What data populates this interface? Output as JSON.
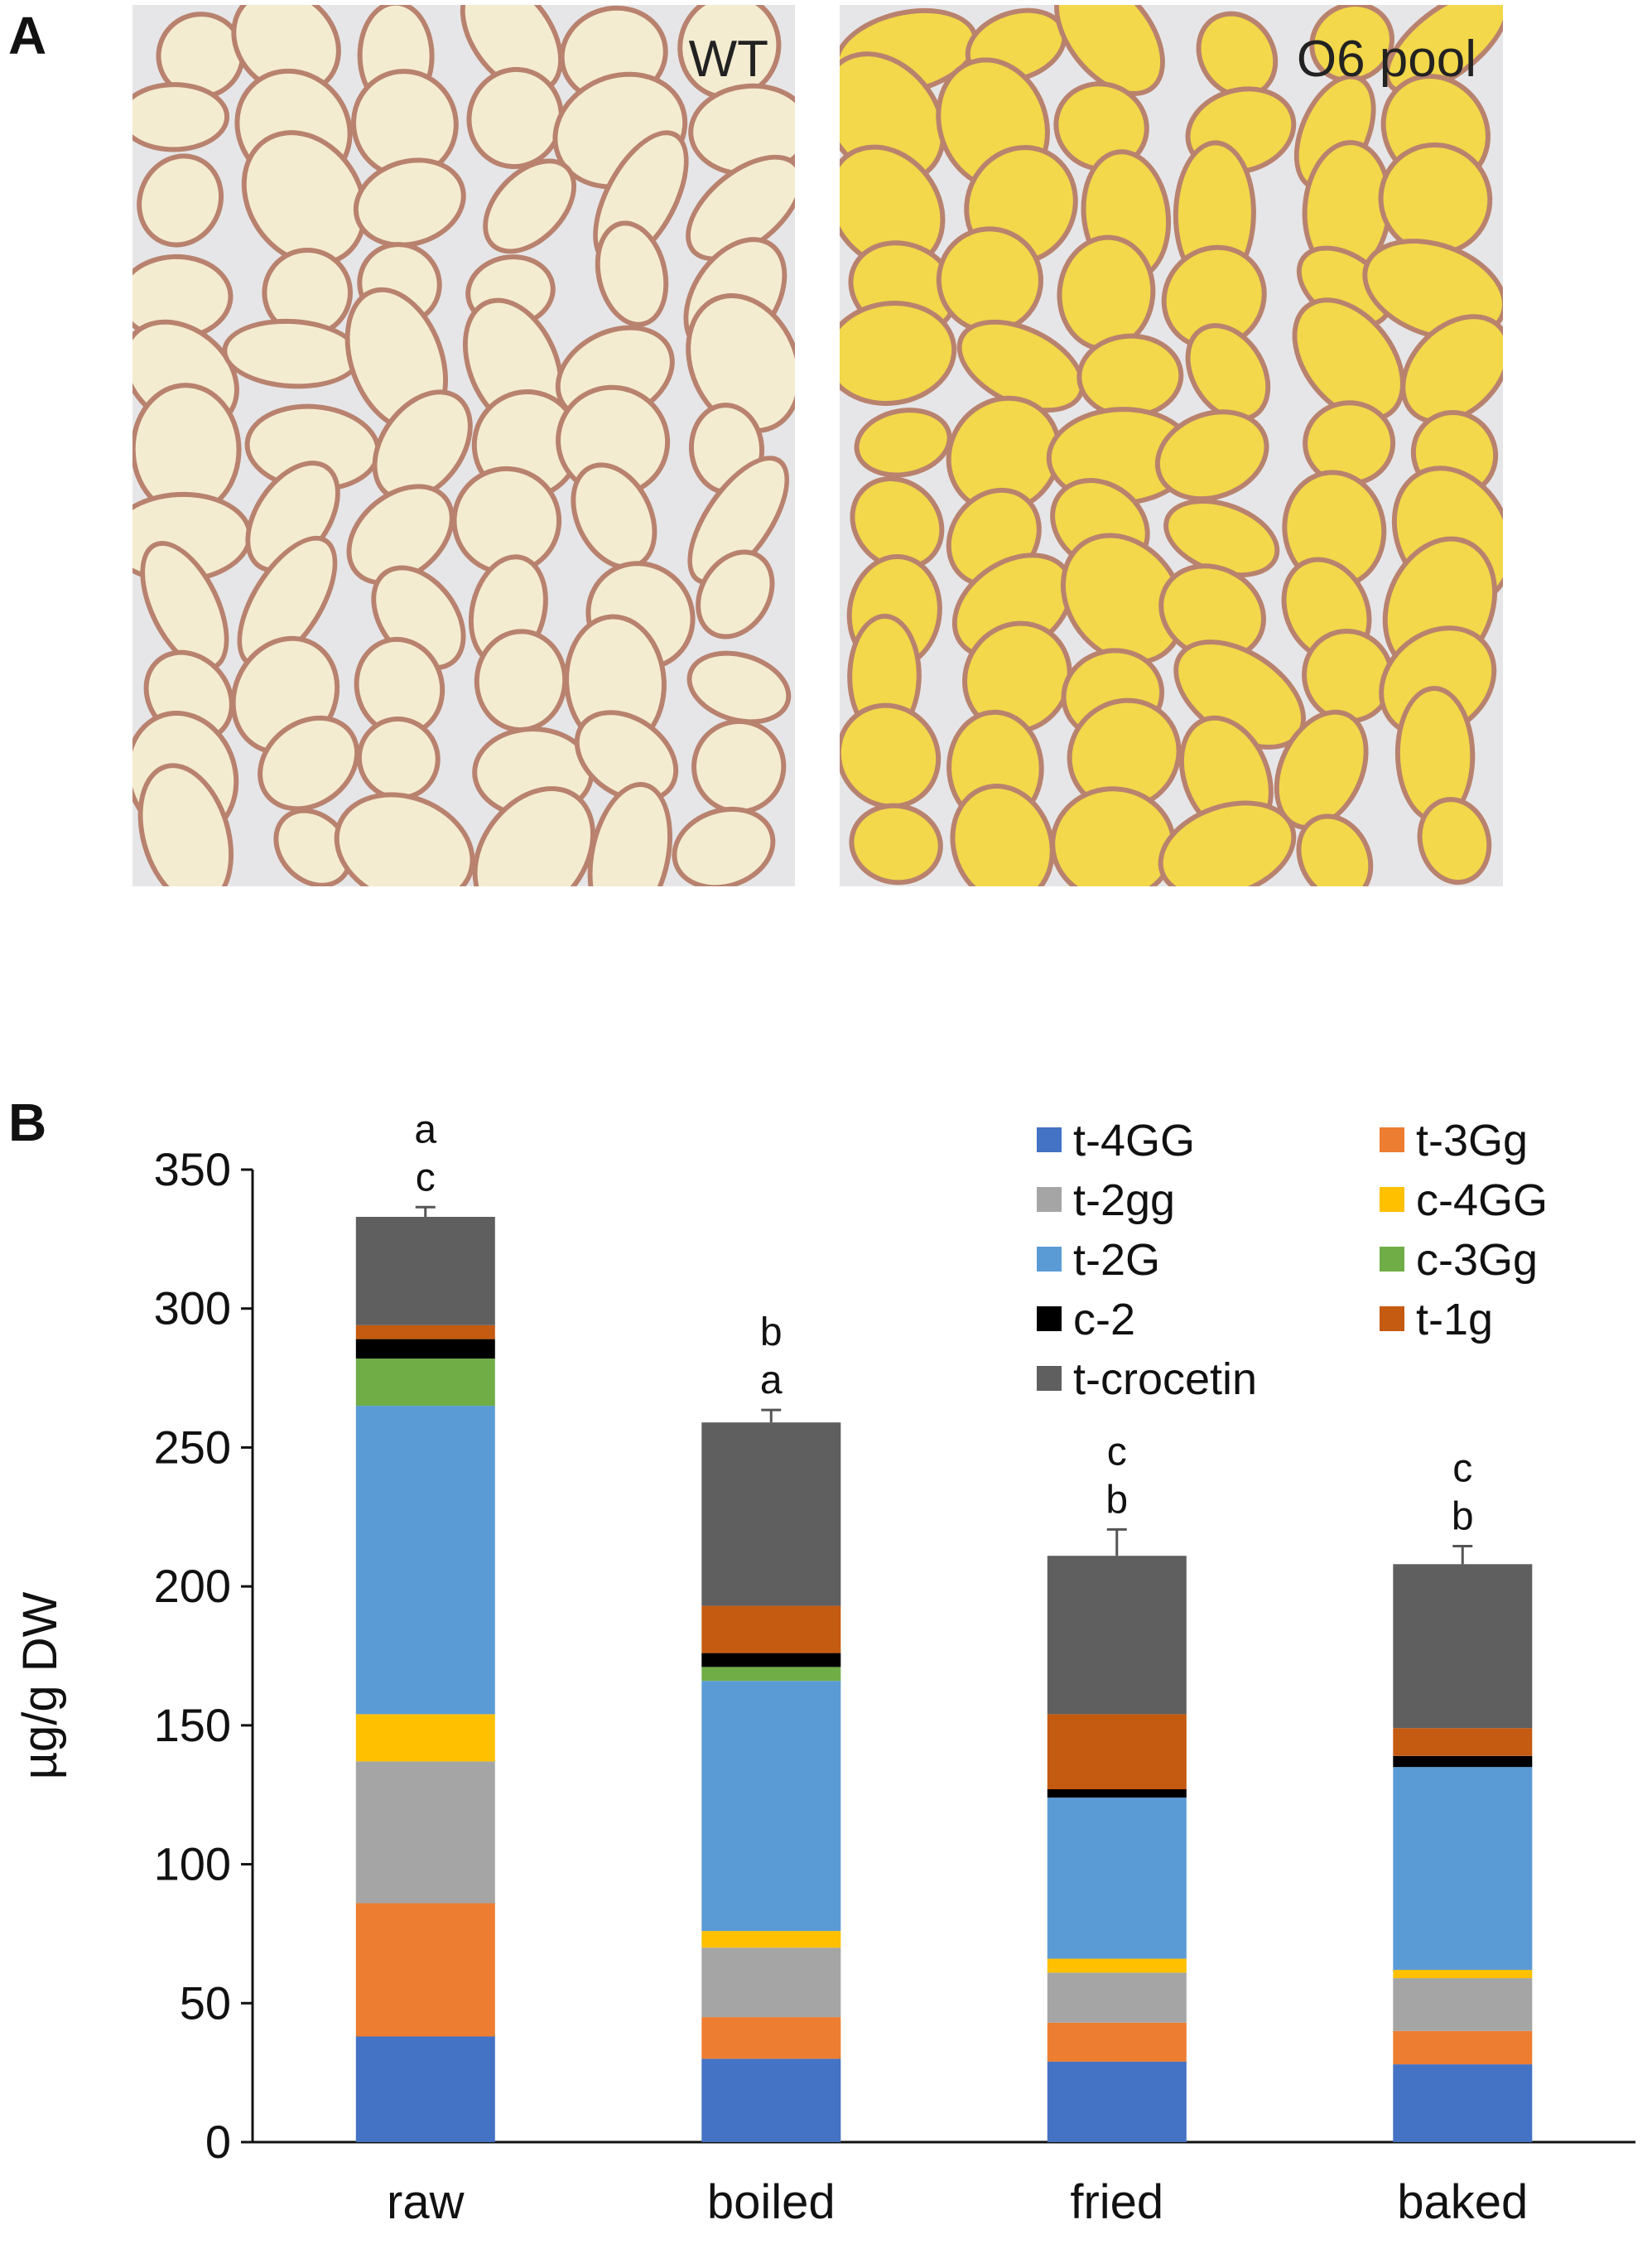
{
  "panels": {
    "a_letter": "A",
    "b_letter": "B",
    "photo_left_label": "WT",
    "photo_right_label": "O6 pool",
    "photo_left_flesh_color": "#f4ecd0",
    "photo_right_flesh_color": "#f2d84a",
    "photo_skin_color": "#b8826e",
    "photo_background_color": "#e6e6e8"
  },
  "chart_data": {
    "type": "bar",
    "stacked": true,
    "ylabel": "µg/g DW",
    "ylim": [
      0,
      350
    ],
    "yticks": [
      0,
      50,
      100,
      150,
      200,
      250,
      300,
      350
    ],
    "categories": [
      "raw",
      "boiled",
      "fried",
      "baked"
    ],
    "grid": false,
    "legend_placement": "top-right",
    "series": [
      {
        "name": "t-4GG",
        "color": "#4472c4",
        "values": [
          38,
          30,
          29,
          28
        ]
      },
      {
        "name": "t-3Gg",
        "color": "#ed7d31",
        "values": [
          48,
          15,
          14,
          12
        ]
      },
      {
        "name": "t-2gg",
        "color": "#a5a5a5",
        "values": [
          51,
          25,
          18,
          19
        ]
      },
      {
        "name": "c-4GG",
        "color": "#ffc000",
        "values": [
          17,
          6,
          5,
          3
        ]
      },
      {
        "name": "t-2G",
        "color": "#5b9bd5",
        "values": [
          111,
          90,
          58,
          73
        ]
      },
      {
        "name": "c-3Gg",
        "color": "#70ad47",
        "values": [
          17,
          5,
          0,
          0
        ]
      },
      {
        "name": "c-2",
        "color": "#000000",
        "values": [
          7,
          5,
          3,
          4
        ]
      },
      {
        "name": "t-1g",
        "color": "#c55a11",
        "values": [
          5,
          17,
          27,
          10
        ]
      },
      {
        "name": "t-crocetin",
        "color": "#5f5f5f",
        "values": [
          39,
          66,
          57,
          59
        ]
      }
    ],
    "totals": [
      333,
      259,
      211,
      208
    ],
    "total_error": [
      3.5,
      4.5,
      9.5,
      6.5
    ],
    "significance": [
      [
        "a",
        "c"
      ],
      [
        "b",
        "a"
      ],
      [
        "c",
        "b"
      ],
      [
        "c",
        "b"
      ]
    ]
  }
}
